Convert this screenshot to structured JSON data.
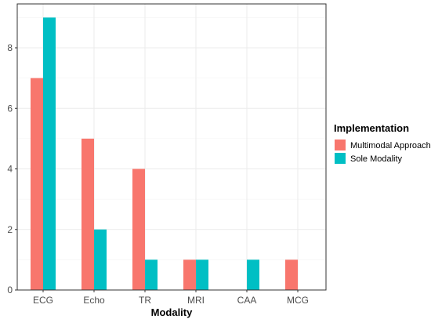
{
  "chart_data": {
    "type": "bar",
    "title": "",
    "xlabel": "Modality",
    "ylabel": "",
    "categories": [
      "ECG",
      "Echo",
      "TR",
      "MRI",
      "CAA",
      "MCG"
    ],
    "series": [
      {
        "name": "Multimodal Approach",
        "color": "#F8766D",
        "values": [
          7,
          5,
          4,
          1,
          0,
          1
        ]
      },
      {
        "name": "Sole Modality",
        "color": "#00BFC4",
        "values": [
          9,
          2,
          1,
          1,
          1,
          0
        ]
      }
    ],
    "ylim": [
      0,
      9.45
    ],
    "yticks": [
      0,
      2,
      4,
      6,
      8
    ],
    "grid": true,
    "legend": {
      "title": "Implementation",
      "position": "right"
    }
  }
}
